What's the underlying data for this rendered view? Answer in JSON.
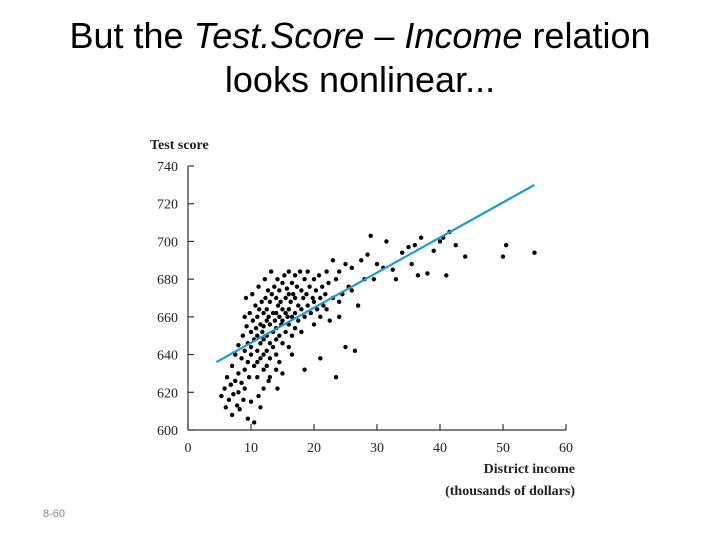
{
  "slide": {
    "title_part1": "But the ",
    "title_italic1": "Test.Score",
    "title_part2": " – ",
    "title_italic2": "Income",
    "title_part3": " relation",
    "title_line2": "looks nonlinear...",
    "slide_number": "8-60"
  },
  "chart_data": {
    "type": "scatter",
    "ylabel": "Test score",
    "xlabel_line1": "District income",
    "xlabel_line2": "(thousands of dollars)",
    "xlim": [
      0,
      60
    ],
    "ylim": [
      600,
      740
    ],
    "x_ticks": [
      0,
      10,
      20,
      30,
      40,
      50,
      60
    ],
    "y_ticks": [
      600,
      620,
      640,
      660,
      680,
      700,
      720,
      740
    ],
    "point_color": "#000000",
    "line_color": "#1f9bd7",
    "regression_line": {
      "x": [
        4.5,
        55
      ],
      "y": [
        636,
        730
      ]
    },
    "points": [
      [
        5.3,
        618
      ],
      [
        5.8,
        622
      ],
      [
        6,
        612
      ],
      [
        6.2,
        628
      ],
      [
        6.5,
        616
      ],
      [
        6.8,
        624
      ],
      [
        7,
        634
      ],
      [
        7,
        608
      ],
      [
        7.2,
        619
      ],
      [
        7.5,
        640
      ],
      [
        7.5,
        626
      ],
      [
        7.8,
        613
      ],
      [
        8,
        645
      ],
      [
        8,
        630
      ],
      [
        8,
        620
      ],
      [
        8.2,
        611
      ],
      [
        8.5,
        638
      ],
      [
        8.5,
        625
      ],
      [
        8.7,
        650
      ],
      [
        8.8,
        616
      ],
      [
        9,
        660
      ],
      [
        9,
        642
      ],
      [
        9,
        632
      ],
      [
        9,
        622
      ],
      [
        9.2,
        670
      ],
      [
        9.3,
        655
      ],
      [
        9.5,
        646
      ],
      [
        9.5,
        636
      ],
      [
        9.7,
        628
      ],
      [
        9.8,
        662
      ],
      [
        10,
        652
      ],
      [
        10,
        644
      ],
      [
        10,
        640
      ],
      [
        10,
        615
      ],
      [
        10.2,
        672
      ],
      [
        10.3,
        658
      ],
      [
        10.5,
        648
      ],
      [
        10.5,
        634
      ],
      [
        10.5,
        604
      ],
      [
        10.7,
        666
      ],
      [
        10.8,
        654
      ],
      [
        11,
        660
      ],
      [
        11,
        650
      ],
      [
        11,
        642
      ],
      [
        11,
        636
      ],
      [
        11,
        628
      ],
      [
        11.2,
        676
      ],
      [
        11.3,
        664
      ],
      [
        11.5,
        656
      ],
      [
        11.5,
        646
      ],
      [
        11.5,
        638
      ],
      [
        11.5,
        612
      ],
      [
        11.7,
        668
      ],
      [
        11.8,
        652
      ],
      [
        12,
        662
      ],
      [
        12,
        655
      ],
      [
        12,
        648
      ],
      [
        12,
        640
      ],
      [
        12,
        632
      ],
      [
        12,
        622
      ],
      [
        12.2,
        680
      ],
      [
        12.3,
        670
      ],
      [
        12.5,
        664
      ],
      [
        12.5,
        658
      ],
      [
        12.5,
        650
      ],
      [
        12.5,
        642
      ],
      [
        12.5,
        634
      ],
      [
        12.7,
        674
      ],
      [
        12.8,
        660
      ],
      [
        13,
        668
      ],
      [
        13,
        656
      ],
      [
        13,
        646
      ],
      [
        13,
        638
      ],
      [
        13,
        628
      ],
      [
        13.2,
        684
      ],
      [
        13.3,
        672
      ],
      [
        13.5,
        662
      ],
      [
        13.5,
        652
      ],
      [
        13.5,
        644
      ],
      [
        13.7,
        676
      ],
      [
        13.8,
        658
      ],
      [
        14,
        670
      ],
      [
        14,
        662
      ],
      [
        14,
        654
      ],
      [
        14,
        648
      ],
      [
        14,
        640
      ],
      [
        14,
        632
      ],
      [
        14.2,
        680
      ],
      [
        14.3,
        666
      ],
      [
        14.5,
        674
      ],
      [
        14.5,
        660
      ],
      [
        14.5,
        650
      ],
      [
        14.5,
        636
      ],
      [
        14.7,
        668
      ],
      [
        14.8,
        656
      ],
      [
        15,
        678
      ],
      [
        15,
        664
      ],
      [
        15,
        658
      ],
      [
        15,
        646
      ],
      [
        15,
        630
      ],
      [
        15.3,
        682
      ],
      [
        15.5,
        670
      ],
      [
        15.5,
        662
      ],
      [
        15.5,
        652
      ],
      [
        15.7,
        675
      ],
      [
        15.8,
        660
      ],
      [
        16,
        684
      ],
      [
        16,
        672
      ],
      [
        16,
        664
      ],
      [
        16,
        656
      ],
      [
        16,
        644
      ],
      [
        16.3,
        668
      ],
      [
        16.5,
        678
      ],
      [
        16.5,
        660
      ],
      [
        16.5,
        650
      ],
      [
        16.7,
        672
      ],
      [
        17,
        682
      ],
      [
        17,
        670
      ],
      [
        17,
        662
      ],
      [
        17,
        654
      ],
      [
        17.3,
        676
      ],
      [
        17.5,
        666
      ],
      [
        17.5,
        658
      ],
      [
        17.8,
        684
      ],
      [
        18,
        674
      ],
      [
        18,
        664
      ],
      [
        18,
        652
      ],
      [
        18.3,
        670
      ],
      [
        18.5,
        680
      ],
      [
        18.5,
        660
      ],
      [
        18.8,
        672
      ],
      [
        19,
        684
      ],
      [
        19,
        666
      ],
      [
        19.3,
        676
      ],
      [
        19.5,
        662
      ],
      [
        19.8,
        670
      ],
      [
        20,
        680
      ],
      [
        20,
        668
      ],
      [
        20,
        656
      ],
      [
        20.3,
        674
      ],
      [
        20.5,
        664
      ],
      [
        20.8,
        682
      ],
      [
        21,
        670
      ],
      [
        21,
        660
      ],
      [
        21.3,
        676
      ],
      [
        21.5,
        666
      ],
      [
        21.8,
        672
      ],
      [
        22,
        684
      ],
      [
        22,
        664
      ],
      [
        22.3,
        678
      ],
      [
        22.5,
        658
      ],
      [
        23,
        690
      ],
      [
        23,
        670
      ],
      [
        23.5,
        680
      ],
      [
        24,
        684
      ],
      [
        24,
        660
      ],
      [
        24.5,
        672
      ],
      [
        25,
        688
      ],
      [
        25.5,
        676
      ],
      [
        26,
        686
      ],
      [
        21,
        638
      ],
      [
        23.5,
        628
      ],
      [
        25,
        644
      ],
      [
        26.5,
        642
      ],
      [
        18.5,
        632
      ],
      [
        16.5,
        640
      ],
      [
        12.8,
        626
      ],
      [
        14.2,
        622
      ],
      [
        11.2,
        618
      ],
      [
        9.5,
        606
      ],
      [
        29,
        703
      ],
      [
        31,
        686
      ],
      [
        31.5,
        700
      ],
      [
        33,
        680
      ],
      [
        34,
        694
      ],
      [
        35,
        697
      ],
      [
        35.5,
        688
      ],
      [
        36,
        698
      ],
      [
        36.5,
        682
      ],
      [
        37,
        702
      ],
      [
        38,
        683
      ],
      [
        39,
        695
      ],
      [
        40,
        700
      ],
      [
        40.5,
        702
      ],
      [
        41,
        682
      ],
      [
        41.5,
        705
      ],
      [
        42.5,
        698
      ],
      [
        44,
        692
      ],
      [
        50,
        692
      ],
      [
        50.5,
        698
      ],
      [
        55,
        694
      ],
      [
        27.5,
        690
      ],
      [
        28.5,
        693
      ],
      [
        30,
        688
      ],
      [
        32.5,
        685
      ],
      [
        29.5,
        680
      ],
      [
        26,
        674
      ],
      [
        27,
        666
      ],
      [
        28,
        680
      ],
      [
        24,
        668
      ]
    ]
  }
}
